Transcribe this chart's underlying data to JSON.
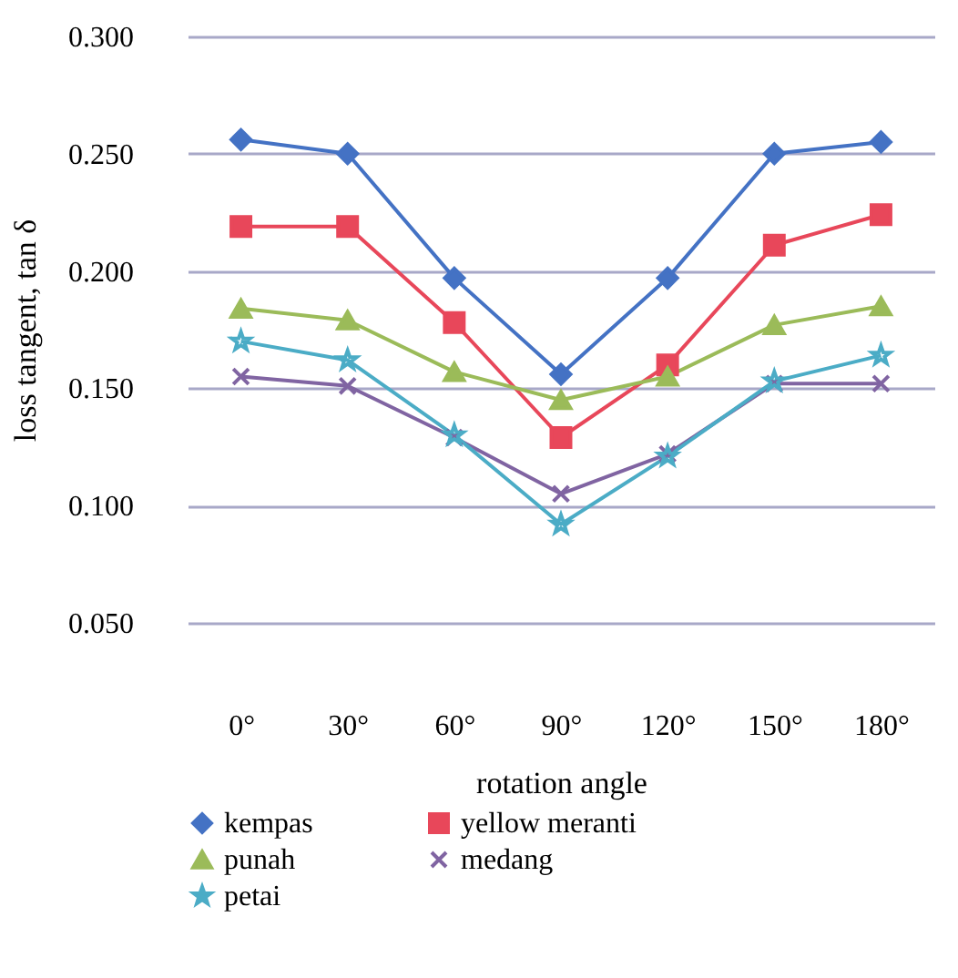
{
  "chart_data": {
    "type": "line",
    "xlabel": "rotation angle",
    "ylabel": "loss tangent, tan δ",
    "categories": [
      "0°",
      "30°",
      "60°",
      "90°",
      "120°",
      "150°",
      "180°"
    ],
    "ylim": [
      0.05,
      0.3
    ],
    "yticks": [
      {
        "value": 0.05,
        "label": "0.050"
      },
      {
        "value": 0.1,
        "label": "0.100"
      },
      {
        "value": 0.15,
        "label": "0.150"
      },
      {
        "value": 0.2,
        "label": "0.200"
      },
      {
        "value": 0.25,
        "label": "0.250"
      },
      {
        "value": 0.3,
        "label": "0.300"
      }
    ],
    "grid": "y",
    "legend": "bottom",
    "series": [
      {
        "name": "kempas",
        "color": "#4472c4",
        "marker": "diamond",
        "values": [
          0.256,
          0.25,
          0.197,
          0.156,
          0.197,
          0.25,
          0.255
        ]
      },
      {
        "name": "yellow meranti",
        "color": "#e8475a",
        "marker": "square",
        "values": [
          0.219,
          0.219,
          0.178,
          0.129,
          0.16,
          0.211,
          0.224
        ]
      },
      {
        "name": "punah",
        "color": "#9bbb59",
        "marker": "triangle",
        "values": [
          0.184,
          0.179,
          0.157,
          0.145,
          0.155,
          0.177,
          0.185
        ]
      },
      {
        "name": "medang",
        "color": "#8064a2",
        "marker": "cross",
        "values": [
          0.155,
          0.151,
          0.129,
          0.105,
          0.122,
          0.152,
          0.152
        ]
      },
      {
        "name": "petai",
        "color": "#4bacc6",
        "marker": "star",
        "values": [
          0.17,
          0.162,
          0.13,
          0.092,
          0.121,
          0.153,
          0.164
        ]
      }
    ]
  }
}
